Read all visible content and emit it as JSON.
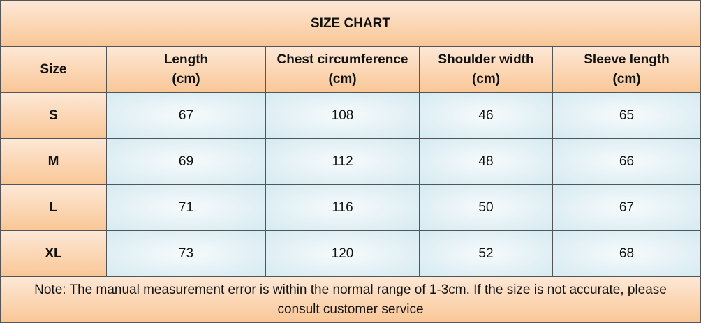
{
  "table": {
    "title": "SIZE CHART",
    "header": [
      "Size",
      "Length\n(cm)",
      "Chest circumference\n(cm)",
      "Shoulder width\n(cm)",
      "Sleeve length\n(cm)"
    ],
    "rows": [
      [
        "S",
        67,
        108,
        46,
        65
      ],
      [
        "M",
        69,
        112,
        48,
        66
      ],
      [
        "L",
        71,
        116,
        50,
        67
      ],
      [
        "XL",
        73,
        120,
        52,
        68
      ]
    ],
    "note": "Note: The manual measurement error is within the normal range of 1-3cm. If the size is not accurate, please consult customer service"
  }
}
